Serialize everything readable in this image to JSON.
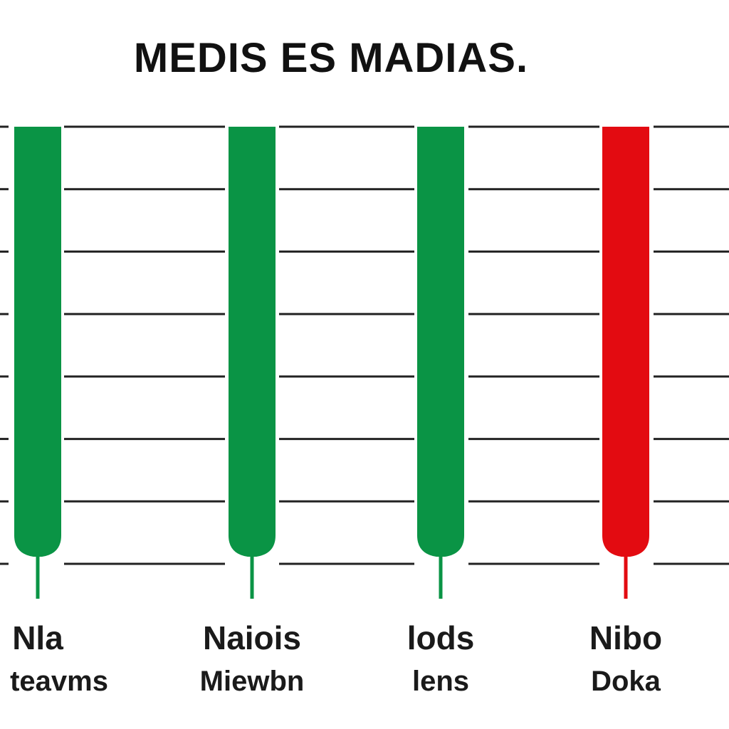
{
  "chart_data": {
    "type": "bar",
    "title": "MEDIS ES MADIAS.",
    "xlabel": "",
    "ylabel": "",
    "grid": true,
    "legend": "none",
    "ylim": [
      0,
      7
    ],
    "categories": [
      {
        "line1": "Nla",
        "line2": "teavms"
      },
      {
        "line1": "Naiois",
        "line2": "Miewbn"
      },
      {
        "line1": "lods",
        "line2": "lens"
      },
      {
        "line1": "Nibo",
        "line2": "Doka"
      }
    ],
    "values": [
      7,
      7,
      7,
      7
    ],
    "bar_colors": [
      "#0a9445",
      "#0a9445",
      "#0a9445",
      "#e30b11"
    ]
  }
}
